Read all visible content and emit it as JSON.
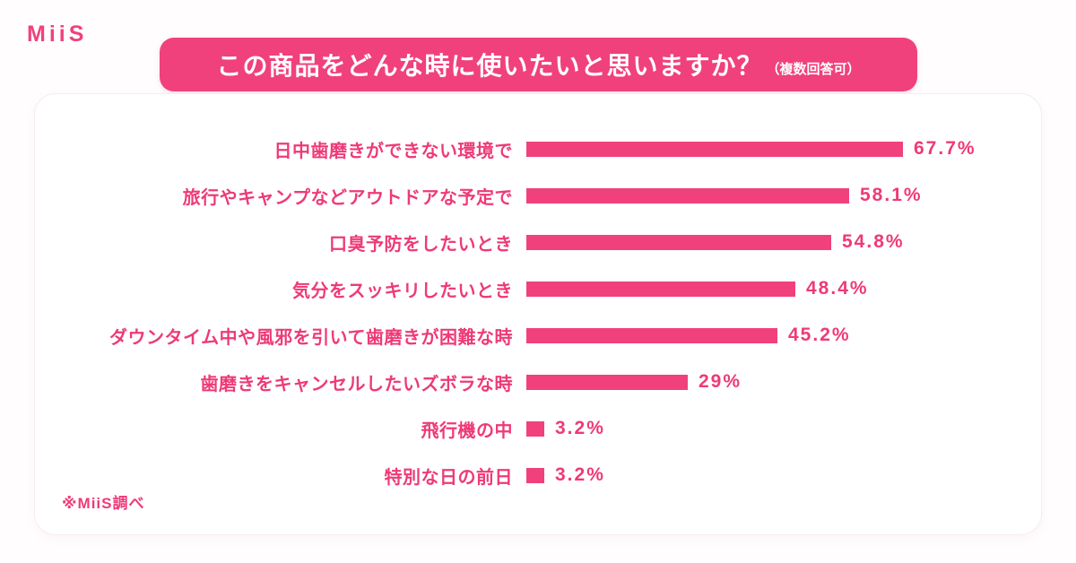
{
  "brand": {
    "logo": "MiiS"
  },
  "header": {
    "title": "この商品をどんな時に使いたいと思いますか？",
    "note": "（複数回答可）"
  },
  "chart_data": {
    "type": "bar",
    "orientation": "horizontal",
    "title": "この商品をどんな時に使いたいと思いますか？（複数回答可）",
    "categories": [
      "日中歯磨きができない環境で",
      "旅行やキャンプなどアウトドアな予定で",
      "口臭予防をしたいとき",
      "気分をスッキリしたいとき",
      "ダウンタイム中や風邪を引いて歯磨きが困難な時",
      "歯磨きをキャンセルしたいズボラな時",
      "飛行機の中",
      "特別な日の前日"
    ],
    "values": [
      67.7,
      58.1,
      54.8,
      48.4,
      45.2,
      29,
      3.2,
      3.2
    ],
    "value_labels": [
      "67.7%",
      "58.1%",
      "54.8%",
      "48.4%",
      "45.2%",
      "29%",
      "3.2%",
      "3.2%"
    ],
    "xlim": [
      0,
      100
    ],
    "grid": false,
    "legend": false,
    "bar_color": "#F0417D",
    "label_color": "#EE3A78"
  },
  "footer": {
    "source_note": "※MiiS調べ"
  },
  "colors": {
    "primary": "#F0417D",
    "text_pink": "#EE3A78",
    "banner_text": "#FFFFFF",
    "card_background": "#FFFFFF",
    "card_border": "#F6ECF1",
    "page_background": "#FFFDFE"
  }
}
